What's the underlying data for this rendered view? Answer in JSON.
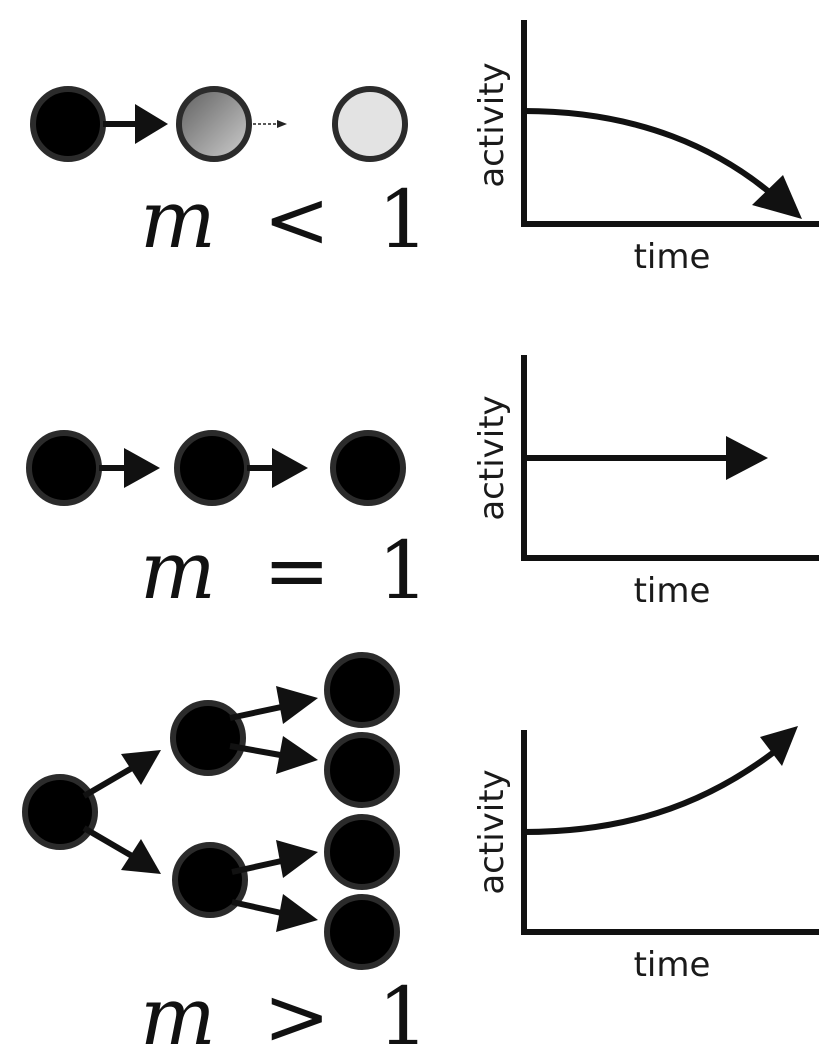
{
  "panels": [
    {
      "id": "subcritical",
      "equation": {
        "var": "m",
        "op": "<",
        "val": "1"
      },
      "x_label": "time",
      "y_label": "activity",
      "trend": "decreasing"
    },
    {
      "id": "critical",
      "equation": {
        "var": "m",
        "op": "=",
        "val": "1"
      },
      "x_label": "time",
      "y_label": "activity",
      "trend": "constant"
    },
    {
      "id": "supercritical",
      "equation": {
        "var": "m",
        "op": ">",
        "val": "1"
      },
      "x_label": "time",
      "y_label": "activity",
      "trend": "increasing"
    }
  ],
  "colors": {
    "node_active": "#000000",
    "node_border": "#2b2b2b",
    "node_fading_start": "#6a6a6a",
    "node_fading_end": "#c4c4c4",
    "node_inactive": "#e3e3e3",
    "ink": "#1a1a1a"
  }
}
